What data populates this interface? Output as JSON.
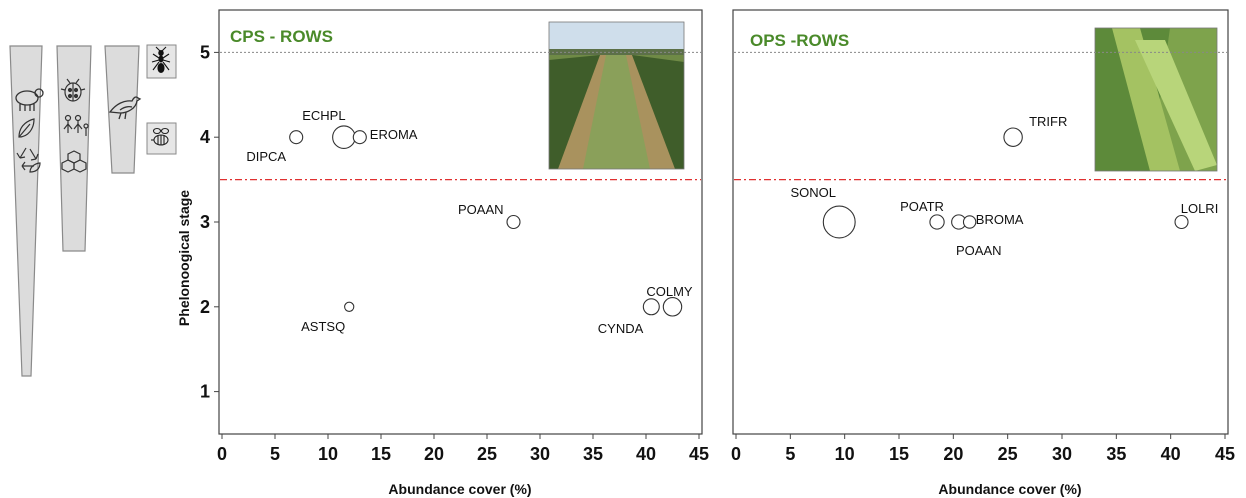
{
  "chart_data": [
    {
      "type": "scatter",
      "title": "CPS - ROWS",
      "xlabel": "Abundance cover (%)",
      "ylabel": "Phelonoogical stage",
      "xlim": [
        0,
        45
      ],
      "ylim": [
        0.5,
        5.5
      ],
      "x_ticks": [
        "0",
        "5",
        "10",
        "15",
        "20",
        "25",
        "30",
        "35",
        "40",
        "45"
      ],
      "y_ticks": [
        "1",
        "2",
        "3",
        "4",
        "5"
      ],
      "reference_lines": [
        {
          "y": 5,
          "style": "dotted",
          "color": "#888888"
        },
        {
          "y": 3.5,
          "style": "dash-dot",
          "color": "#e03030"
        }
      ],
      "grid": false,
      "points": [
        {
          "label": "DIPCA",
          "x": 7,
          "y": 4,
          "size": 1
        },
        {
          "label": "ECHPL",
          "x": 11.5,
          "y": 4,
          "size": 3
        },
        {
          "label": "EROMA",
          "x": 13,
          "y": 4,
          "size": 1
        },
        {
          "label": "POAAN",
          "x": 27.5,
          "y": 3,
          "size": 1
        },
        {
          "label": "ASTSQ",
          "x": 12,
          "y": 2,
          "size": 0.5
        },
        {
          "label": "CYNDA",
          "x": 40.5,
          "y": 2,
          "size": 1.5
        },
        {
          "label": "COLMY",
          "x": 42.5,
          "y": 2,
          "size": 2
        }
      ]
    },
    {
      "type": "scatter",
      "title": "OPS -ROWS",
      "xlabel": "Abundance cover (%)",
      "ylabel": "",
      "xlim": [
        0,
        45
      ],
      "ylim": [
        0.5,
        5.5
      ],
      "x_ticks": [
        "0",
        "5",
        "10",
        "15",
        "20",
        "25",
        "30",
        "35",
        "40",
        "45"
      ],
      "y_ticks": [],
      "reference_lines": [
        {
          "y": 5,
          "style": "dotted",
          "color": "#888888"
        },
        {
          "y": 3.5,
          "style": "dash-dot",
          "color": "#e03030"
        }
      ],
      "grid": false,
      "points": [
        {
          "label": "TRIFR",
          "x": 25.5,
          "y": 4,
          "size": 2
        },
        {
          "label": "SONOL",
          "x": 9.5,
          "y": 3,
          "size": 6
        },
        {
          "label": "POATR",
          "x": 18.5,
          "y": 3,
          "size": 1.2
        },
        {
          "label": "POAAN",
          "x": 20.5,
          "y": 3,
          "size": 1.2
        },
        {
          "label": "BROMA",
          "x": 21.5,
          "y": 3,
          "size": 0.9
        },
        {
          "label": "LOLRI",
          "x": 41,
          "y": 3,
          "size": 1
        }
      ]
    }
  ],
  "colors": {
    "title_green": "#4a8a2a",
    "ref_red": "#e03030",
    "ref_grey": "#888888"
  },
  "icons": {
    "bar1": [
      "sheep-icon",
      "leaf-icon",
      "recycle-icon"
    ],
    "bar2": [
      "ladybug-icon",
      "people-icon",
      "molecule-icon"
    ],
    "bar3": [
      "bird-icon"
    ],
    "boxes": [
      "ant-icon",
      "bee-icon"
    ]
  }
}
